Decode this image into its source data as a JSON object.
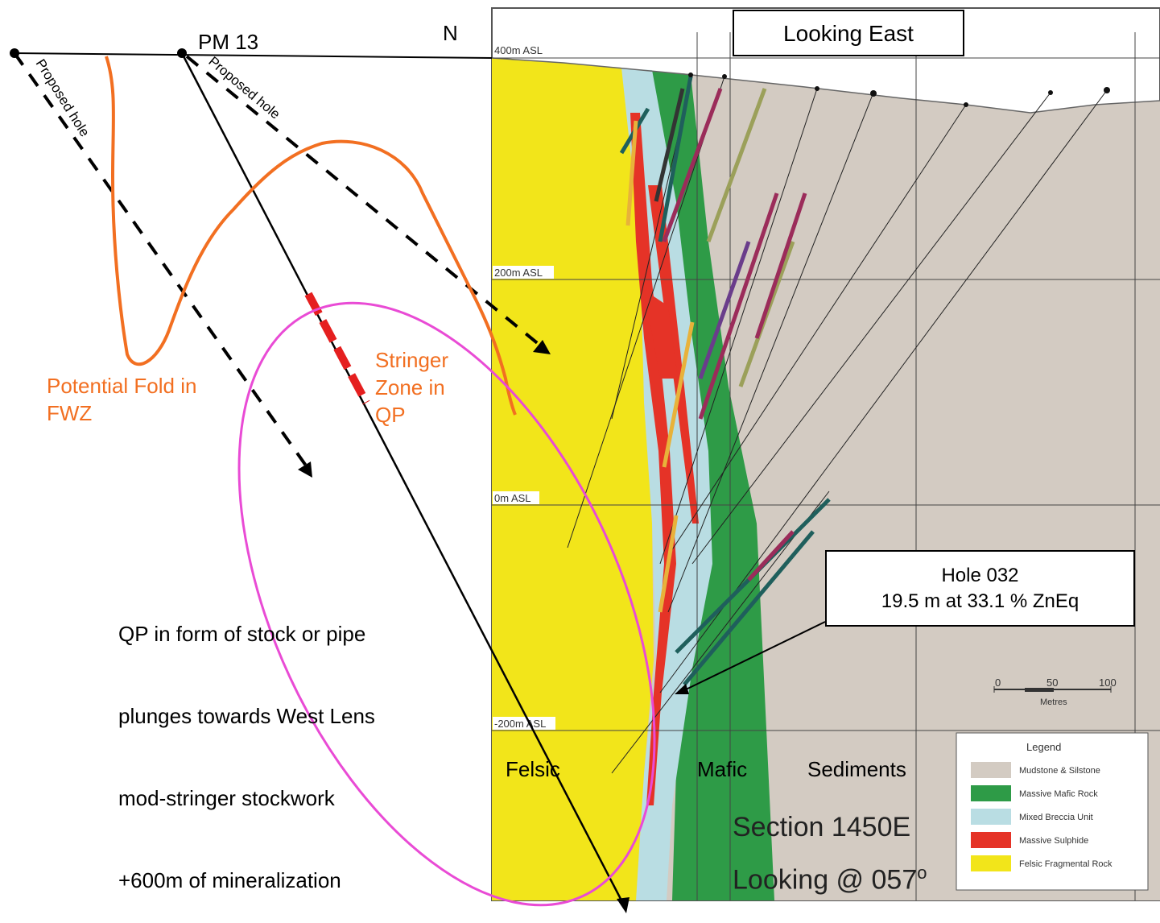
{
  "diagram": {
    "collar_label": "PM 13",
    "north_label": "N",
    "proposed_hole_left": "Proposed hole",
    "proposed_hole_right": "Proposed hole",
    "look_label": "Looking East",
    "elevations": [
      "400m ASL",
      "200m ASL",
      "0m ASL",
      "-200m ASL"
    ],
    "fold_label_line1": "Potential Fold in",
    "fold_label_line2": "FWZ",
    "stringer_line1": "Stringer",
    "stringer_line2": "Zone in",
    "stringer_line3": "QP",
    "qp_note": [
      "QP in form of stock or pipe",
      "plunges towards West Lens",
      "mod-stringer stockwork",
      "+600m of mineralization"
    ],
    "hole_title": "Hole 032",
    "hole_detail": "19.5 m at 33.1 % ZnEq",
    "scale_ticks": [
      "0",
      "50",
      "100"
    ],
    "scale_unit": "Metres",
    "unit_labels": {
      "felsic": "Felsic",
      "mafic": "Mafic",
      "sediments": "Sediments"
    },
    "section_title": "Section 1450E",
    "section_look": "Looking @ 057",
    "section_degree": "o",
    "legend": {
      "title": "Legend",
      "items": [
        {
          "label": "Mudstone & Silstone",
          "color": "#D3CBC2"
        },
        {
          "label": "Massive Mafic Rock",
          "color": "#2E9B47"
        },
        {
          "label": "Mixed Breccia Unit",
          "color": "#B9DDE3"
        },
        {
          "label": "Massive Sulphide",
          "color": "#E53327"
        },
        {
          "label": "Felsic Fragmental Rock",
          "color": "#F2E51A"
        }
      ]
    },
    "colors": {
      "fold": "#F26F21",
      "ellipse": "#E94BD5",
      "stringer": "#E51F1F"
    }
  }
}
